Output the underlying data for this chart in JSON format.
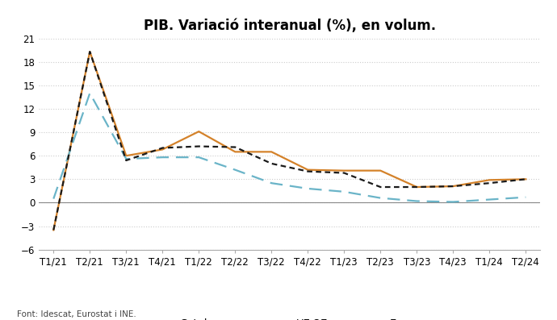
{
  "title": "PIB. Variació interanual (%), en volum.",
  "source": "Font: Idescat, Eurostat i INE.",
  "categories": [
    "T1/21",
    "T2/21",
    "T3/21",
    "T4/21",
    "T1/22",
    "T2/22",
    "T3/22",
    "T4/22",
    "T1/23",
    "T2/23",
    "T3/23",
    "T4/23",
    "T1/24",
    "T2/24"
  ],
  "catalunya": [
    -3.5,
    19.3,
    6.0,
    6.8,
    9.1,
    6.5,
    6.5,
    4.2,
    4.1,
    4.1,
    2.0,
    2.1,
    2.9,
    3.0
  ],
  "ue27": [
    0.5,
    14.0,
    5.6,
    5.8,
    5.8,
    4.2,
    2.5,
    1.8,
    1.4,
    0.6,
    0.2,
    0.1,
    0.4,
    0.7
  ],
  "espanya": [
    -3.5,
    19.3,
    5.4,
    7.0,
    7.2,
    7.1,
    5.0,
    4.0,
    3.8,
    2.0,
    2.0,
    2.1,
    2.5,
    3.0
  ],
  "catalunya_color": "#D4822A",
  "ue27_color": "#6AB4C8",
  "espanya_color": "#1A1A1A",
  "background_color": "#ffffff",
  "grid_color": "#cccccc",
  "ylim": [
    -6,
    21
  ],
  "yticks": [
    -6,
    -3,
    0,
    3,
    6,
    9,
    12,
    15,
    18,
    21
  ],
  "title_fontsize": 12,
  "legend_fontsize": 9.5,
  "tick_fontsize": 8.5,
  "source_fontsize": 7.5
}
